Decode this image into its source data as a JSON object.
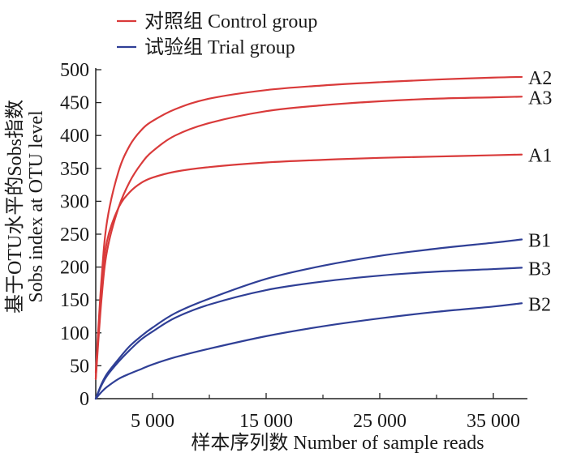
{
  "chart_data": {
    "type": "line",
    "xlabel": "样本序列数  Number of sample reads",
    "ylabel_cn": "基于OTU水平的Sobs指数",
    "ylabel_en": "Sobs index at OTU level",
    "xlim": [
      0,
      38000
    ],
    "ylim": [
      0,
      500
    ],
    "x_ticks": [
      5000,
      15000,
      25000,
      35000
    ],
    "x_tick_labels": [
      "5 000",
      "15 000",
      "25 000",
      "35 000"
    ],
    "x_minor_ticks": [
      10000,
      20000,
      30000
    ],
    "y_ticks": [
      0,
      50,
      100,
      150,
      200,
      250,
      300,
      350,
      400,
      450,
      500
    ],
    "legend": {
      "placement": "top-left",
      "entries": [
        {
          "label": "对照组 Control group",
          "color": "#d93a3a"
        },
        {
          "label": "试验组 Trial group",
          "color": "#2f3f96"
        }
      ]
    },
    "series": [
      {
        "name": "A2",
        "group": "control",
        "color": "#d93a3a",
        "x": [
          0,
          500,
          1000,
          2000,
          3000,
          4000,
          5000,
          7000,
          10000,
          15000,
          20000,
          25000,
          30000,
          35000,
          37500
        ],
        "y": [
          40,
          180,
          270,
          345,
          385,
          408,
          422,
          440,
          456,
          469,
          476,
          481,
          485,
          488,
          489
        ]
      },
      {
        "name": "A3",
        "group": "control",
        "color": "#d93a3a",
        "x": [
          0,
          500,
          1000,
          2000,
          3000,
          4000,
          5000,
          7000,
          10000,
          15000,
          20000,
          25000,
          30000,
          35000,
          37500
        ],
        "y": [
          30,
          150,
          225,
          290,
          330,
          357,
          376,
          400,
          419,
          437,
          446,
          452,
          456,
          458,
          459
        ]
      },
      {
        "name": "A1",
        "group": "control",
        "color": "#d93a3a",
        "x": [
          0,
          500,
          1000,
          2000,
          3000,
          4000,
          5000,
          7000,
          10000,
          15000,
          20000,
          25000,
          30000,
          35000,
          37500
        ],
        "y": [
          30,
          170,
          240,
          290,
          314,
          328,
          336,
          345,
          352,
          359,
          363,
          366,
          368,
          370,
          371
        ]
      },
      {
        "name": "B1",
        "group": "trial",
        "color": "#2f3f96",
        "x": [
          0,
          500,
          1000,
          2000,
          3000,
          4000,
          5000,
          7000,
          10000,
          15000,
          20000,
          25000,
          30000,
          35000,
          37500
        ],
        "y": [
          0,
          22,
          38,
          60,
          80,
          95,
          108,
          130,
          152,
          182,
          202,
          217,
          228,
          237,
          242
        ]
      },
      {
        "name": "B3",
        "group": "trial",
        "color": "#2f3f96",
        "x": [
          0,
          500,
          1000,
          2000,
          3000,
          4000,
          5000,
          7000,
          10000,
          15000,
          20000,
          25000,
          30000,
          35000,
          37500
        ],
        "y": [
          0,
          20,
          35,
          56,
          74,
          90,
          102,
          123,
          143,
          165,
          178,
          187,
          193,
          197,
          199
        ]
      },
      {
        "name": "B2",
        "group": "trial",
        "color": "#2f3f96",
        "x": [
          0,
          500,
          1000,
          2000,
          3000,
          4000,
          5000,
          7000,
          10000,
          15000,
          20000,
          25000,
          30000,
          35000,
          37500
        ],
        "y": [
          0,
          10,
          18,
          30,
          38,
          45,
          52,
          63,
          76,
          95,
          110,
          122,
          132,
          140,
          145
        ]
      }
    ]
  }
}
